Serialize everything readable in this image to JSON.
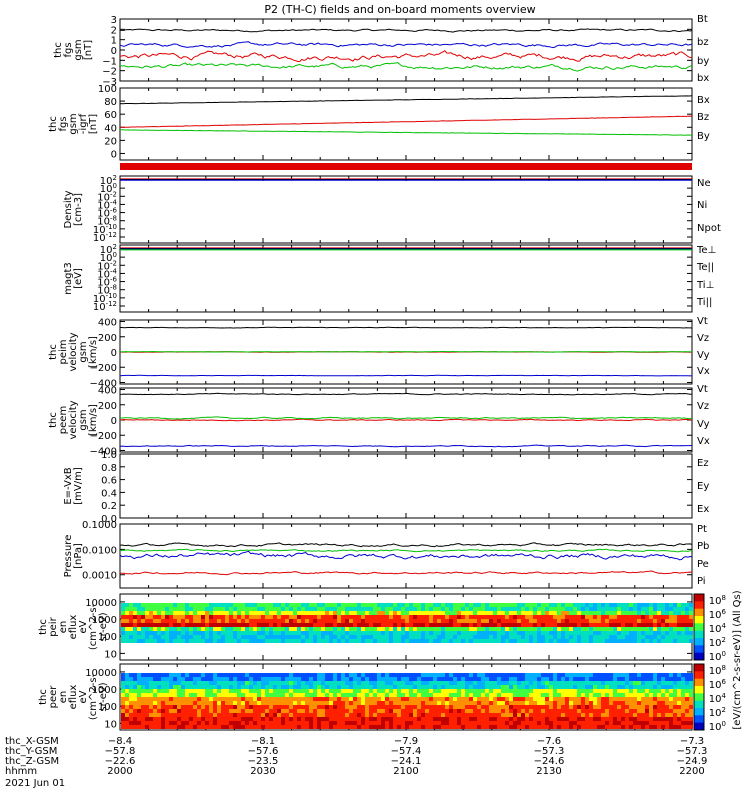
{
  "title": "P2 (TH-C) fields and on-board moments overview",
  "colors": {
    "black": "#000000",
    "red": "#e00000",
    "green": "#00c000",
    "blue": "#0000d0",
    "bg": "#ffffff"
  },
  "chart_data": [
    {
      "type": "line",
      "id": "p1",
      "ylabel": [
        "thc",
        "fgs",
        "gsm",
        "[nT]"
      ],
      "yticks": [
        "3",
        "2",
        "1",
        "0",
        "−1",
        "−2",
        "−3"
      ],
      "ylim": [
        -3,
        3
      ],
      "series": [
        {
          "name": "Bt",
          "color": "#000000",
          "level": 1.9,
          "noise": 0.12
        },
        {
          "name": "bz",
          "color": "#e00000",
          "level": -0.6,
          "noise": 0.35
        },
        {
          "name": "by",
          "color": "#00c000",
          "level": -1.6,
          "noise": 0.25
        },
        {
          "name": "bx",
          "color": "#0000d0",
          "level": 0.5,
          "noise": 0.2
        }
      ]
    },
    {
      "type": "line",
      "id": "p2",
      "ylabel": [
        "thc",
        "fgs",
        "gsm",
        "-igrf",
        "[nT]"
      ],
      "yticks": [
        "100",
        "80",
        "60",
        "40",
        "20",
        "0"
      ],
      "ylim": [
        -10,
        100
      ],
      "series": [
        {
          "name": "Bx",
          "color": "#000000",
          "start": 76,
          "end": 88,
          "noise": 0.5
        },
        {
          "name": "Bz",
          "color": "#e00000",
          "start": 40,
          "end": 57,
          "noise": 0.5
        },
        {
          "name": "By",
          "color": "#00c000",
          "start": 36,
          "end": 28,
          "noise": 0.5
        }
      ]
    },
    {
      "type": "log",
      "id": "p3",
      "ylabel": [
        "Density",
        "[cm-3]"
      ],
      "yticks": [
        "10^2",
        "10^0",
        "10^-2",
        "10^-4",
        "10^-6",
        "10^-8",
        "10^-10",
        "10^-12"
      ],
      "series": [
        {
          "name": "Ne",
          "color": "#e00000"
        },
        {
          "name": "Ni",
          "color": "#000000"
        },
        {
          "name": "Npot",
          "color": "#0000d0"
        }
      ]
    },
    {
      "type": "log",
      "id": "p4",
      "ylabel": [
        "magt3",
        "[eV]"
      ],
      "yticks": [
        "10^2",
        "10^0",
        "10^-2",
        "10^-4",
        "10^-6",
        "10^-8",
        "10^-10",
        "10^-12"
      ],
      "series": [
        {
          "name": "Te⊥",
          "color": "#e00000"
        },
        {
          "name": "Te||",
          "color": "#000000"
        },
        {
          "name": "Ti⊥",
          "color": "#0000d0"
        },
        {
          "name": "Ti||",
          "color": "#00c000"
        }
      ]
    },
    {
      "type": "line",
      "id": "p5",
      "ylabel": [
        "thc",
        "peim",
        "velocity",
        "gsm",
        "[km/s]"
      ],
      "yticks": [
        "400",
        "200",
        "0",
        "−200",
        "−400"
      ],
      "ylim": [
        -420,
        420
      ],
      "series": [
        {
          "name": "Vt",
          "color": "#000000",
          "level": 320,
          "noise": 4
        },
        {
          "name": "Vz",
          "color": "#e00000",
          "level": 0,
          "noise": 3
        },
        {
          "name": "Vy",
          "color": "#00c000",
          "level": 2,
          "noise": 3
        },
        {
          "name": "Vx",
          "color": "#0000d0",
          "level": -310,
          "noise": 3
        }
      ]
    },
    {
      "type": "line",
      "id": "p6",
      "ylabel": [
        "thc",
        "peem",
        "velocity",
        "gsm",
        "[km/s]"
      ],
      "yticks": [
        "400",
        "200",
        "0",
        "−200",
        "−400"
      ],
      "ylim": [
        -420,
        420
      ],
      "series": [
        {
          "name": "Vt",
          "color": "#000000",
          "level": 340,
          "noise": 8
        },
        {
          "name": "Vz",
          "color": "#e00000",
          "level": 0,
          "noise": 8
        },
        {
          "name": "Vy",
          "color": "#00c000",
          "level": 25,
          "noise": 10
        },
        {
          "name": "Vx",
          "color": "#0000d0",
          "level": -340,
          "noise": 8
        }
      ]
    },
    {
      "type": "line",
      "id": "p7",
      "ylabel": [
        "E=-VxB",
        "[mV/m]"
      ],
      "yticks": [
        "1.0",
        "0.8",
        "0.6",
        "0.4",
        "0.2",
        "0.0"
      ],
      "ylim": [
        0,
        1
      ],
      "series": [
        {
          "name": "Ez",
          "color": "#e00000"
        },
        {
          "name": "Ey",
          "color": "#00c000"
        },
        {
          "name": "Ex",
          "color": "#0000d0"
        }
      ]
    },
    {
      "type": "logline",
      "id": "p8",
      "ylabel": [
        "Pressure",
        "[nPa]"
      ],
      "yticks": [
        "0.1000",
        "0.0100",
        "0.0010"
      ],
      "ylim": [
        0.0003,
        0.1
      ],
      "series": [
        {
          "name": "Pt",
          "color": "#000000",
          "level": 0.015,
          "noise": 0.06
        },
        {
          "name": "Pb",
          "color": "#e00000",
          "level": 0.0012,
          "noise": 0.05
        },
        {
          "name": "Pe",
          "color": "#00c000",
          "level": 0.009,
          "noise": 0.04
        },
        {
          "name": "Pi",
          "color": "#0000d0",
          "level": 0.0055,
          "noise": 0.12
        }
      ]
    },
    {
      "type": "heatmap",
      "id": "p9",
      "ylabel": [
        "thc",
        "peir",
        "en",
        "eflux",
        "eV",
        "(cm^2-s-",
        "sr-eV)"
      ],
      "yticks": [
        "10000",
        "1000",
        "100",
        "10"
      ],
      "colorbar_ticks": [
        "10^8",
        "10^6",
        "10^4",
        "10^2",
        "10^0"
      ],
      "colorbar_label": "[eV/(cm^2-s-sr-eV)] (All Qs)"
    },
    {
      "type": "heatmap",
      "id": "p10",
      "ylabel": [
        "thc",
        "peer",
        "en",
        "eflux",
        "eV",
        "(cm^2-s-",
        "sr-eV)"
      ],
      "yticks": [
        "10000",
        "1000",
        "100",
        "10"
      ],
      "colorbar_ticks": [
        "10^8",
        "10^6",
        "10^4",
        "10^2",
        "10^0"
      ],
      "colorbar_label": "[eV/(cm^2-s-sr-eV)] (All Qs)"
    }
  ],
  "xaxis": {
    "rows": [
      {
        "label": "thc_X-GSM",
        "values": [
          "−8.4",
          "−8.1",
          "−7.9",
          "−7.6",
          "−7.3"
        ]
      },
      {
        "label": "thc_Y-GSM",
        "values": [
          "−57.8",
          "−57.6",
          "−57.4",
          "−57.3",
          "−57.3"
        ]
      },
      {
        "label": "thc_Z-GSM",
        "values": [
          "−22.6",
          "−23.5",
          "−24.1",
          "−24.6",
          "−24.9"
        ]
      },
      {
        "label": "hhmm",
        "values": [
          "2000",
          "2030",
          "2100",
          "2130",
          "2200"
        ]
      }
    ],
    "date": "2021 Jun 01"
  }
}
